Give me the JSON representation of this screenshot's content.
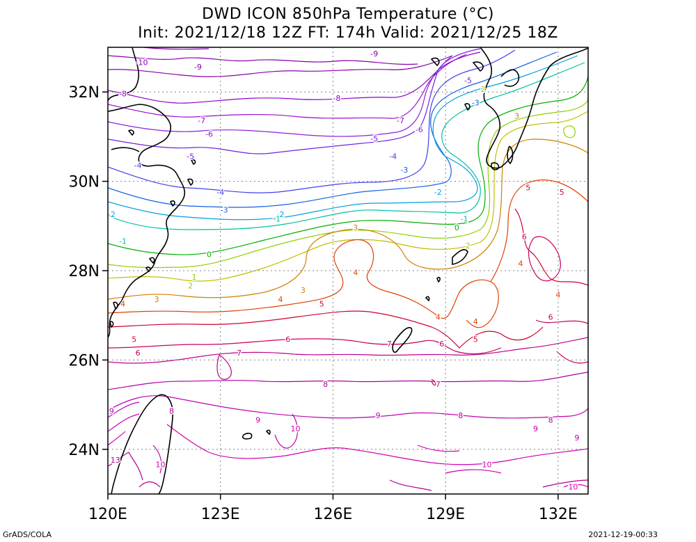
{
  "title": {
    "line1": "DWD ICON 850hPa Temperature (°C)",
    "line2": "Init: 2021/12/18 12Z  FT: 174h  Valid: 2021/12/25 18Z"
  },
  "map": {
    "lon_range": [
      120,
      132.8
    ],
    "lat_range": [
      23,
      33
    ],
    "lat_ticks": [
      {
        "value": 24,
        "label": "24N"
      },
      {
        "value": 26,
        "label": "26N"
      },
      {
        "value": 28,
        "label": "28N"
      },
      {
        "value": 30,
        "label": "30N"
      },
      {
        "value": 32,
        "label": "32N"
      }
    ],
    "lon_ticks": [
      {
        "value": 120,
        "label": "120E"
      },
      {
        "value": 123,
        "label": "123E"
      },
      {
        "value": 126,
        "label": "126E"
      },
      {
        "value": 129,
        "label": "129E"
      },
      {
        "value": 132,
        "label": "132E"
      }
    ],
    "gridlines": "dotted",
    "contour_interval": 1,
    "contour_colors": {
      "-10": "#8800aa",
      "-9": "#8800aa",
      "-8": "#8f00c8",
      "-7": "#9a10d0",
      "-6": "#8a20d8",
      "-5": "#7020e0",
      "-4": "#4040e8",
      "-3": "#1060e0",
      "-2": "#00a0e0",
      "-1": "#00c0a0",
      "0": "#00b000",
      "1": "#90d000",
      "2": "#c0c000",
      "3": "#d08000",
      "4": "#e04000",
      "5": "#d00030",
      "6": "#c80060",
      "7": "#c00090",
      "8": "#b000a0",
      "9": "#c000b0",
      "10": "#d000b0",
      "13": "#b00090"
    },
    "contour_labels": [
      {
        "value": "-10",
        "lon": 120.9,
        "lat": 32.6
      },
      {
        "value": "-9",
        "lon": 122.4,
        "lat": 32.5
      },
      {
        "value": "-9",
        "lon": 127.1,
        "lat": 32.8
      },
      {
        "value": "-8",
        "lon": 120.4,
        "lat": 31.9
      },
      {
        "value": "-8",
        "lon": 126.1,
        "lat": 31.8
      },
      {
        "value": "-7",
        "lon": 122.5,
        "lat": 31.3
      },
      {
        "value": "-7",
        "lon": 127.8,
        "lat": 31.3
      },
      {
        "value": "-6",
        "lon": 122.7,
        "lat": 31.0
      },
      {
        "value": "-6",
        "lon": 128.3,
        "lat": 31.1
      },
      {
        "value": "-5",
        "lon": 122.2,
        "lat": 30.5
      },
      {
        "value": "-5",
        "lon": 127.1,
        "lat": 30.9
      },
      {
        "value": "-5",
        "lon": 129.6,
        "lat": 32.2
      },
      {
        "value": "-4",
        "lon": 120.8,
        "lat": 30.3
      },
      {
        "value": "-4",
        "lon": 123.0,
        "lat": 29.7
      },
      {
        "value": "-4",
        "lon": 127.6,
        "lat": 30.5
      },
      {
        "value": "-3",
        "lon": 123.1,
        "lat": 29.3
      },
      {
        "value": "-3",
        "lon": 127.9,
        "lat": 30.2
      },
      {
        "value": "-3",
        "lon": 129.8,
        "lat": 31.7
      },
      {
        "value": "-2",
        "lon": 120.1,
        "lat": 29.2
      },
      {
        "value": "-2",
        "lon": 124.6,
        "lat": 29.2
      },
      {
        "value": "-2",
        "lon": 128.8,
        "lat": 29.7
      },
      {
        "value": "-1",
        "lon": 120.4,
        "lat": 28.6
      },
      {
        "value": "-1",
        "lon": 124.5,
        "lat": 29.1
      },
      {
        "value": "-1",
        "lon": 129.5,
        "lat": 29.1
      },
      {
        "value": "0",
        "lon": 122.7,
        "lat": 28.3
      },
      {
        "value": "0",
        "lon": 129.3,
        "lat": 28.9
      },
      {
        "value": "1",
        "lon": 122.3,
        "lat": 27.8
      },
      {
        "value": "2",
        "lon": 122.2,
        "lat": 27.6
      },
      {
        "value": "2",
        "lon": 130.0,
        "lat": 32.0
      },
      {
        "value": "2",
        "lon": 129.6,
        "lat": 28.5
      },
      {
        "value": "3",
        "lon": 121.3,
        "lat": 27.3
      },
      {
        "value": "3",
        "lon": 125.2,
        "lat": 27.5
      },
      {
        "value": "3",
        "lon": 126.6,
        "lat": 28.9
      },
      {
        "value": "3",
        "lon": 130.9,
        "lat": 31.4
      },
      {
        "value": "4",
        "lon": 120.4,
        "lat": 27.2
      },
      {
        "value": "4",
        "lon": 124.6,
        "lat": 27.3
      },
      {
        "value": "4",
        "lon": 126.6,
        "lat": 27.9
      },
      {
        "value": "4",
        "lon": 128.8,
        "lat": 26.9
      },
      {
        "value": "4",
        "lon": 129.8,
        "lat": 26.8
      },
      {
        "value": "4",
        "lon": 131.0,
        "lat": 28.1
      },
      {
        "value": "4",
        "lon": 132.0,
        "lat": 27.4
      },
      {
        "value": "5",
        "lon": 120.7,
        "lat": 26.4
      },
      {
        "value": "5",
        "lon": 125.7,
        "lat": 27.2
      },
      {
        "value": "5",
        "lon": 129.8,
        "lat": 26.4
      },
      {
        "value": "5",
        "lon": 131.2,
        "lat": 29.8
      },
      {
        "value": "5",
        "lon": 132.1,
        "lat": 29.7
      },
      {
        "value": "6",
        "lon": 120.8,
        "lat": 26.1
      },
      {
        "value": "6",
        "lon": 124.8,
        "lat": 26.4
      },
      {
        "value": "6",
        "lon": 128.9,
        "lat": 26.3
      },
      {
        "value": "6",
        "lon": 131.1,
        "lat": 28.7
      },
      {
        "value": "6",
        "lon": 131.8,
        "lat": 26.9
      },
      {
        "value": "7",
        "lon": 123.5,
        "lat": 26.1
      },
      {
        "value": "7",
        "lon": 127.5,
        "lat": 26.3
      },
      {
        "value": "7",
        "lon": 128.8,
        "lat": 25.4
      },
      {
        "value": "8",
        "lon": 121.7,
        "lat": 24.8
      },
      {
        "value": "8",
        "lon": 125.8,
        "lat": 25.4
      },
      {
        "value": "8",
        "lon": 129.4,
        "lat": 24.7
      },
      {
        "value": "8",
        "lon": 131.8,
        "lat": 24.6
      },
      {
        "value": "9",
        "lon": 120.1,
        "lat": 24.8
      },
      {
        "value": "9",
        "lon": 124.0,
        "lat": 24.6
      },
      {
        "value": "9",
        "lon": 127.2,
        "lat": 24.7
      },
      {
        "value": "9",
        "lon": 131.4,
        "lat": 24.4
      },
      {
        "value": "9",
        "lon": 132.5,
        "lat": 24.2
      },
      {
        "value": "10",
        "lon": 125.0,
        "lat": 24.4
      },
      {
        "value": "10",
        "lon": 121.4,
        "lat": 23.6
      },
      {
        "value": "10",
        "lon": 130.1,
        "lat": 23.6
      },
      {
        "value": "10",
        "lon": 132.4,
        "lat": 23.1
      },
      {
        "value": "13",
        "lon": 120.2,
        "lat": 23.7
      }
    ]
  },
  "footer": {
    "left": "GrADS/COLA",
    "right": "2021-12-19-00:33"
  }
}
